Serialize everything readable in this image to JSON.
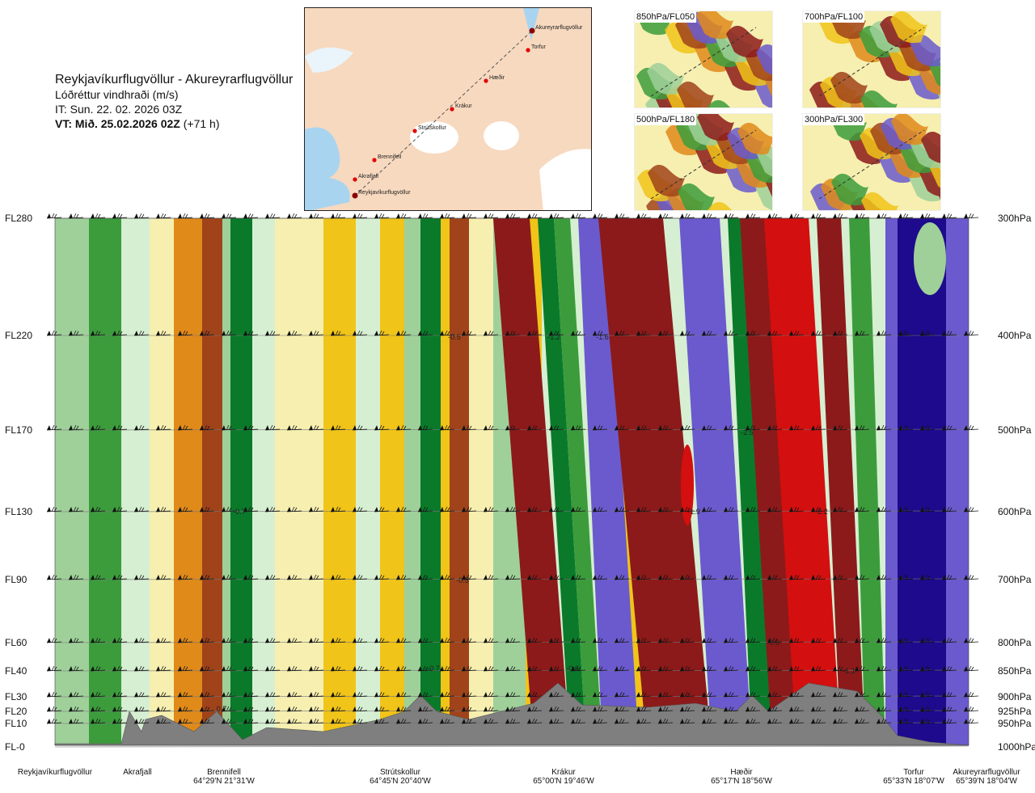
{
  "header": {
    "route": "Reykjavíkurflugvöllur - Akureyrarflugvöllur",
    "variable": "Lóðréttur vindhraði (m/s)",
    "issue_time": "IT: Sun. 22. 02. 2026 03Z",
    "valid_time": "VT: Mið. 25.02.2026 02Z",
    "lead": " (+71 h)"
  },
  "map": {
    "points": [
      {
        "name": "Akureyrarflugvöllur"
      },
      {
        "name": "Torfur"
      },
      {
        "name": "Hæðir"
      },
      {
        "name": "Krákur"
      },
      {
        "name": "Strútskollur"
      },
      {
        "name": "Brennifell"
      },
      {
        "name": "Akrafjall"
      },
      {
        "name": "Reykjavíkurflugvöllur"
      }
    ]
  },
  "thumbnails": [
    {
      "label": "850hPa/FL050"
    },
    {
      "label": "700hPa/FL100"
    },
    {
      "label": "500hPa/FL180"
    },
    {
      "label": "300hPa/FL300"
    }
  ],
  "axes": {
    "left_ticks": [
      "FL280",
      "FL220",
      "FL170",
      "FL130",
      "FL90",
      "FL60",
      "FL40",
      "FL30",
      "FL20",
      "FL10",
      "FL-0"
    ],
    "right_ticks": [
      "300hPa",
      "400hPa",
      "500hPa",
      "600hPa",
      "700hPa",
      "800hPa",
      "850hPa",
      "900hPa",
      "925hPa",
      "950hPa",
      "1000hPa"
    ]
  },
  "locations": [
    {
      "name": "Reykjavíkurflugvöllur",
      "coord": ""
    },
    {
      "name": "Akrafjall",
      "coord": ""
    },
    {
      "name": "Brennifell",
      "coord": "64°29'N 21°31'W"
    },
    {
      "name": "Strútskollur",
      "coord": "64°45'N 20°40'W"
    },
    {
      "name": "Krákur",
      "coord": "65°00'N 19°46'W"
    },
    {
      "name": "Hæðir",
      "coord": "65°17'N 18°56'W"
    },
    {
      "name": "Torfur",
      "coord": "65°33'N 18°07'W"
    },
    {
      "name": "Akureyrarflugvöllur",
      "coord": "65°39'N 18°04'W"
    }
  ],
  "contour_labels": [
    "-0.5",
    "-1.2",
    "-1.6",
    "-2.5",
    "-1.9",
    "-2.2",
    "-0.7",
    "-0.5",
    "0.6",
    "-0.7",
    "-0.6",
    "0.7",
    "-1.1"
  ],
  "chart_data": {
    "type": "heatmap",
    "title": "Lóðréttur vindhraði (m/s)",
    "xlabel": "",
    "ylabel": "",
    "x": [
      "Reykjavíkurflugvöllur",
      "Akrafjall",
      "Brennifell",
      "Strútskollur",
      "Krákur",
      "Hæðir",
      "Torfur",
      "Akureyrarflugvöllur"
    ],
    "y_left": [
      "FL280",
      "FL220",
      "FL170",
      "FL130",
      "FL90",
      "FL60",
      "FL40",
      "FL30",
      "FL20",
      "FL10",
      "FL-0"
    ],
    "y_right": [
      "300hPa",
      "400hPa",
      "500hPa",
      "600hPa",
      "700hPa",
      "800hPa",
      "850hPa",
      "900hPa",
      "925hPa",
      "950hPa",
      "1000hPa"
    ],
    "colors": {
      "strong_down": "#1e0a8c",
      "down": "#6a5acd",
      "weak_down": "#4a7fb5",
      "green_dark": "#0a7a2a",
      "green": "#3c9c3c",
      "green_light": "#9fd09a",
      "green_pale": "#d6efd2",
      "yellow_pale": "#f6efb0",
      "yellow": "#f0c419",
      "orange": "#e08a1a",
      "brown": "#a0431a",
      "dark_red": "#8c1a1a",
      "red": "#d40f0f",
      "terrain": "#7f7f7f"
    }
  }
}
